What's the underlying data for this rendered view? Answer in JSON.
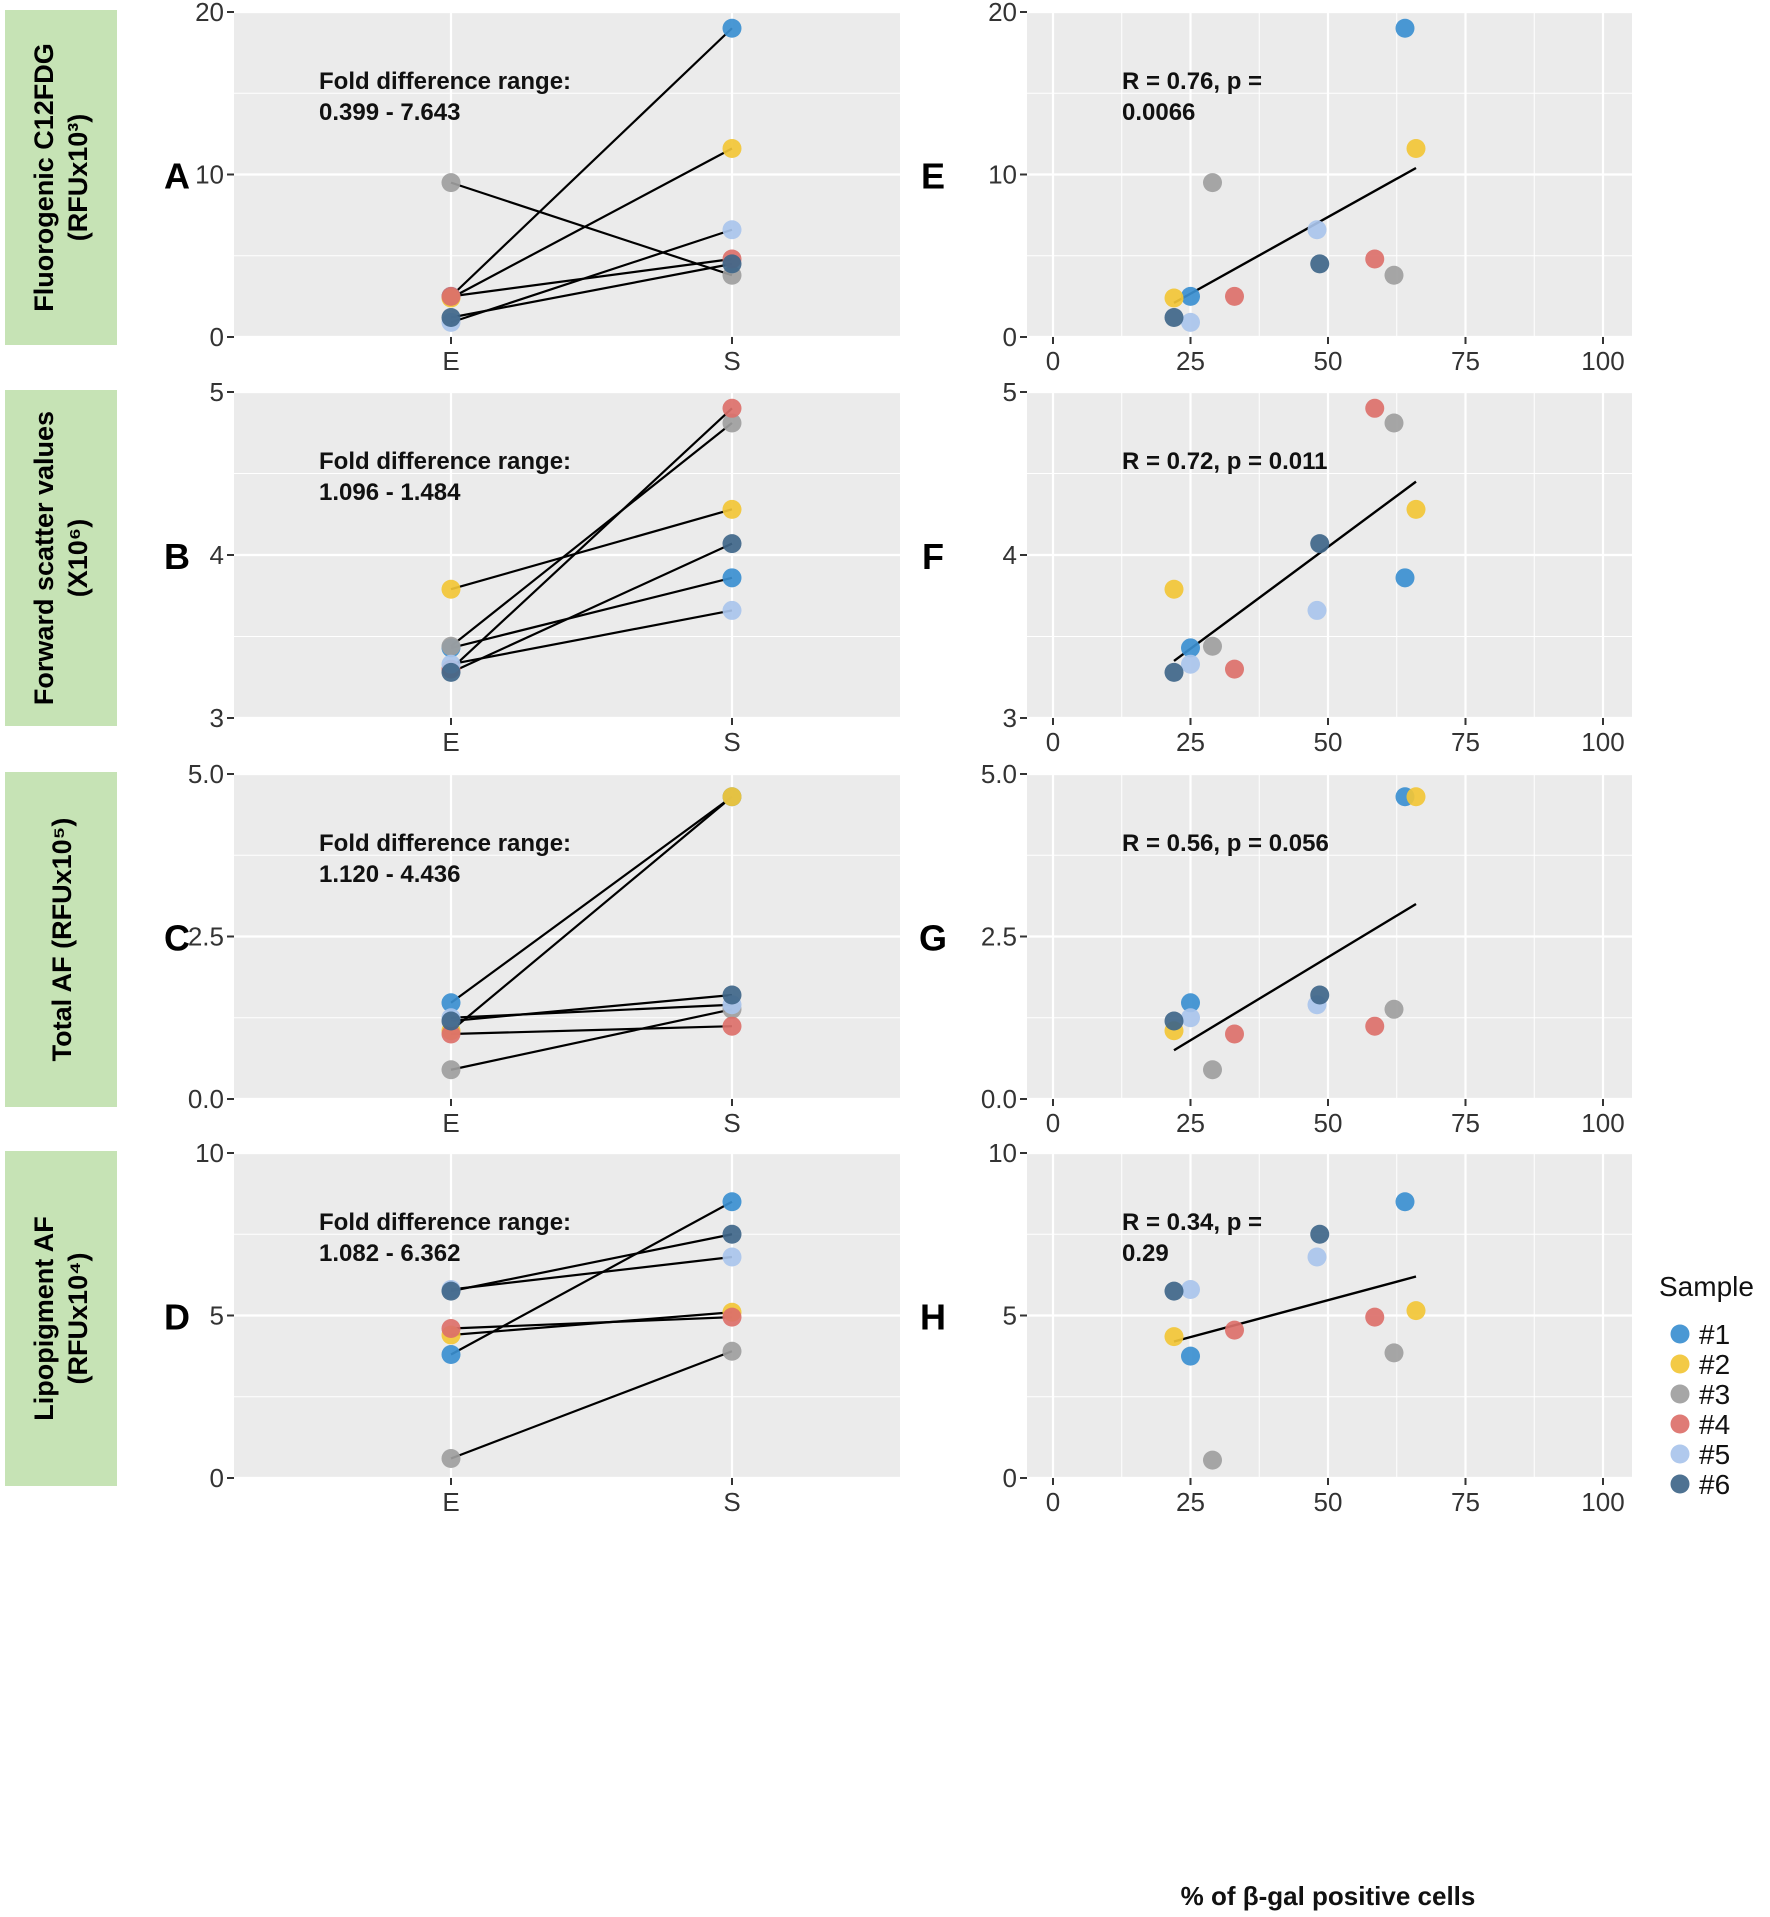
{
  "colors": {
    "s1": "#3b8fd0",
    "s2": "#f2c636",
    "s3": "#9e9e9e",
    "s4": "#dc706a",
    "s5": "#a9c4ec",
    "s6": "#3f6689",
    "panel_bg": "#ebebeb",
    "grid": "#ffffff",
    "label_box": "#c6e3b5",
    "line": "#000000"
  },
  "row_labels": [
    {
      "line1": "Fluorogenic C12FDG",
      "line2": "(RFUx10³)"
    },
    {
      "line1": "Forward scatter values",
      "line2": "(X10⁶)"
    },
    {
      "line1": "Total AF  (RFUx10⁵)",
      "line2": ""
    },
    {
      "line1": "Lipopigment AF",
      "line2": "(RFUx10⁴)"
    }
  ],
  "x_axis_label": "% of β-gal positive cells",
  "legend": {
    "title": "Sample",
    "items": [
      {
        "label": "#1",
        "color_key": "s1"
      },
      {
        "label": "#2",
        "color_key": "s2"
      },
      {
        "label": "#3",
        "color_key": "s3"
      },
      {
        "label": "#4",
        "color_key": "s4"
      },
      {
        "label": "#5",
        "color_key": "s5"
      },
      {
        "label": "#6",
        "color_key": "s6"
      }
    ]
  },
  "chart_data": [
    {
      "type": "line",
      "panel": "A",
      "annotation": [
        "Fold difference range:",
        "0.399 - 7.643"
      ],
      "categories": [
        "E",
        "S"
      ],
      "ylim": [
        0,
        20
      ],
      "yticks": [
        0,
        10,
        20
      ],
      "ytick_labels": [
        "0",
        "10",
        "20"
      ],
      "series": [
        {
          "name": "#1",
          "values": [
            2.5,
            19.0
          ]
        },
        {
          "name": "#2",
          "values": [
            2.4,
            11.6
          ]
        },
        {
          "name": "#3",
          "values": [
            9.5,
            3.8
          ]
        },
        {
          "name": "#4",
          "values": [
            2.5,
            4.8
          ]
        },
        {
          "name": "#5",
          "values": [
            0.9,
            6.6
          ]
        },
        {
          "name": "#6",
          "values": [
            1.2,
            4.5
          ]
        }
      ]
    },
    {
      "type": "scatter",
      "panel": "E",
      "annotation": [
        "R = 0.76,  p =",
        "0.0066"
      ],
      "xlim": [
        -3,
        103
      ],
      "xticks": [
        0,
        25,
        50,
        75,
        100
      ],
      "ylim": [
        0,
        20
      ],
      "yticks": [
        0,
        10,
        20
      ],
      "ytick_labels": [
        "0",
        "10",
        "20"
      ],
      "fit": [
        [
          22,
          2.1
        ],
        [
          66,
          10.4
        ]
      ],
      "points": [
        {
          "sample": "#1",
          "x": 25,
          "y": 2.5
        },
        {
          "sample": "#1",
          "x": 64,
          "y": 19.0
        },
        {
          "sample": "#2",
          "x": 22,
          "y": 2.4
        },
        {
          "sample": "#2",
          "x": 66,
          "y": 11.6
        },
        {
          "sample": "#3",
          "x": 29,
          "y": 9.5
        },
        {
          "sample": "#3",
          "x": 62,
          "y": 3.8
        },
        {
          "sample": "#4",
          "x": 33,
          "y": 2.5
        },
        {
          "sample": "#4",
          "x": 58.5,
          "y": 4.8
        },
        {
          "sample": "#5",
          "x": 25,
          "y": 0.9
        },
        {
          "sample": "#5",
          "x": 48,
          "y": 6.6
        },
        {
          "sample": "#6",
          "x": 22,
          "y": 1.2
        },
        {
          "sample": "#6",
          "x": 48.5,
          "y": 4.5
        }
      ]
    },
    {
      "type": "line",
      "panel": "B",
      "annotation": [
        "Fold difference range:",
        "1.096 - 1.484"
      ],
      "categories": [
        "E",
        "S"
      ],
      "ylim": [
        3,
        5
      ],
      "yticks": [
        3,
        4,
        5
      ],
      "ytick_labels": [
        "3",
        "4",
        "5"
      ],
      "series": [
        {
          "name": "#1",
          "values": [
            3.43,
            3.86
          ]
        },
        {
          "name": "#2",
          "values": [
            3.79,
            4.28
          ]
        },
        {
          "name": "#3",
          "values": [
            3.44,
            4.81
          ]
        },
        {
          "name": "#4",
          "values": [
            3.3,
            4.9
          ]
        },
        {
          "name": "#5",
          "values": [
            3.33,
            3.66
          ]
        },
        {
          "name": "#6",
          "values": [
            3.28,
            4.07
          ]
        }
      ]
    },
    {
      "type": "scatter",
      "panel": "F",
      "annotation": [
        "R = 0.72,  p = 0.011",
        ""
      ],
      "xlim": [
        -3,
        103
      ],
      "xticks": [
        0,
        25,
        50,
        75,
        100
      ],
      "ylim": [
        3,
        5
      ],
      "yticks": [
        3,
        4,
        5
      ],
      "ytick_labels": [
        "3",
        "4",
        "5"
      ],
      "fit": [
        [
          22,
          3.35
        ],
        [
          66,
          4.45
        ]
      ],
      "points": [
        {
          "sample": "#1",
          "x": 25,
          "y": 3.43
        },
        {
          "sample": "#1",
          "x": 64,
          "y": 3.86
        },
        {
          "sample": "#2",
          "x": 22,
          "y": 3.79
        },
        {
          "sample": "#2",
          "x": 66,
          "y": 4.28
        },
        {
          "sample": "#3",
          "x": 29,
          "y": 3.44
        },
        {
          "sample": "#3",
          "x": 62,
          "y": 4.81
        },
        {
          "sample": "#4",
          "x": 33,
          "y": 3.3
        },
        {
          "sample": "#4",
          "x": 58.5,
          "y": 4.9
        },
        {
          "sample": "#5",
          "x": 25,
          "y": 3.33
        },
        {
          "sample": "#5",
          "x": 48,
          "y": 3.66
        },
        {
          "sample": "#6",
          "x": 22,
          "y": 3.28
        },
        {
          "sample": "#6",
          "x": 48.5,
          "y": 4.07
        }
      ]
    },
    {
      "type": "line",
      "panel": "C",
      "annotation": [
        "Fold difference range:",
        "1.120 - 4.436"
      ],
      "categories": [
        "E",
        "S"
      ],
      "ylim": [
        0,
        5
      ],
      "yticks": [
        0,
        2.5,
        5
      ],
      "ytick_labels": [
        "0.0",
        "2.5",
        "5.0"
      ],
      "series": [
        {
          "name": "#1",
          "values": [
            1.48,
            4.65
          ]
        },
        {
          "name": "#2",
          "values": [
            1.05,
            4.65
          ]
        },
        {
          "name": "#3",
          "values": [
            0.45,
            1.38
          ]
        },
        {
          "name": "#4",
          "values": [
            1.0,
            1.12
          ]
        },
        {
          "name": "#5",
          "values": [
            1.25,
            1.45
          ]
        },
        {
          "name": "#6",
          "values": [
            1.2,
            1.6
          ]
        }
      ]
    },
    {
      "type": "scatter",
      "panel": "G",
      "annotation": [
        "R = 0.56,  p = 0.056",
        ""
      ],
      "xlim": [
        -3,
        103
      ],
      "xticks": [
        0,
        25,
        50,
        75,
        100
      ],
      "ylim": [
        0,
        5
      ],
      "yticks": [
        0,
        2.5,
        5
      ],
      "ytick_labels": [
        "0.0",
        "2.5",
        "5.0"
      ],
      "fit": [
        [
          22,
          0.75
        ],
        [
          66,
          3.0
        ]
      ],
      "points": [
        {
          "sample": "#1",
          "x": 25,
          "y": 1.48
        },
        {
          "sample": "#1",
          "x": 64,
          "y": 4.65
        },
        {
          "sample": "#2",
          "x": 22,
          "y": 1.05
        },
        {
          "sample": "#2",
          "x": 66,
          "y": 4.65
        },
        {
          "sample": "#3",
          "x": 29,
          "y": 0.45
        },
        {
          "sample": "#3",
          "x": 62,
          "y": 1.38
        },
        {
          "sample": "#4",
          "x": 33,
          "y": 1.0
        },
        {
          "sample": "#4",
          "x": 58.5,
          "y": 1.12
        },
        {
          "sample": "#5",
          "x": 25,
          "y": 1.25
        },
        {
          "sample": "#5",
          "x": 48,
          "y": 1.45
        },
        {
          "sample": "#6",
          "x": 22,
          "y": 1.2
        },
        {
          "sample": "#6",
          "x": 48.5,
          "y": 1.6
        }
      ]
    },
    {
      "type": "line",
      "panel": "D",
      "annotation": [
        "Fold difference range:",
        "1.082 - 6.362"
      ],
      "categories": [
        "E",
        "S"
      ],
      "ylim": [
        0,
        10
      ],
      "yticks": [
        0,
        5,
        10
      ],
      "ytick_labels": [
        "0",
        "5",
        "10"
      ],
      "series": [
        {
          "name": "#1",
          "values": [
            3.8,
            8.5
          ]
        },
        {
          "name": "#2",
          "values": [
            4.4,
            5.1
          ]
        },
        {
          "name": "#3",
          "values": [
            0.6,
            3.9
          ]
        },
        {
          "name": "#4",
          "values": [
            4.6,
            4.95
          ]
        },
        {
          "name": "#5",
          "values": [
            5.8,
            6.8
          ]
        },
        {
          "name": "#6",
          "values": [
            5.75,
            7.5
          ]
        }
      ]
    },
    {
      "type": "scatter",
      "panel": "H",
      "annotation": [
        "R = 0.34,  p =",
        "0.29"
      ],
      "xlim": [
        -3,
        103
      ],
      "xticks": [
        0,
        25,
        50,
        75,
        100
      ],
      "ylim": [
        0,
        10
      ],
      "yticks": [
        0,
        5,
        10
      ],
      "ytick_labels": [
        "0",
        "5",
        "10"
      ],
      "fit": [
        [
          22,
          4.2
        ],
        [
          66,
          6.2
        ]
      ],
      "points": [
        {
          "sample": "#1",
          "x": 25,
          "y": 3.75
        },
        {
          "sample": "#1",
          "x": 64,
          "y": 8.5
        },
        {
          "sample": "#2",
          "x": 22,
          "y": 4.35
        },
        {
          "sample": "#2",
          "x": 66,
          "y": 5.15
        },
        {
          "sample": "#3",
          "x": 29,
          "y": 0.55
        },
        {
          "sample": "#3",
          "x": 62,
          "y": 3.85
        },
        {
          "sample": "#4",
          "x": 33,
          "y": 4.55
        },
        {
          "sample": "#4",
          "x": 58.5,
          "y": 4.95
        },
        {
          "sample": "#5",
          "x": 25,
          "y": 5.8
        },
        {
          "sample": "#5",
          "x": 48,
          "y": 6.8
        },
        {
          "sample": "#6",
          "x": 22,
          "y": 5.75
        },
        {
          "sample": "#6",
          "x": 48.5,
          "y": 7.5
        }
      ]
    }
  ]
}
